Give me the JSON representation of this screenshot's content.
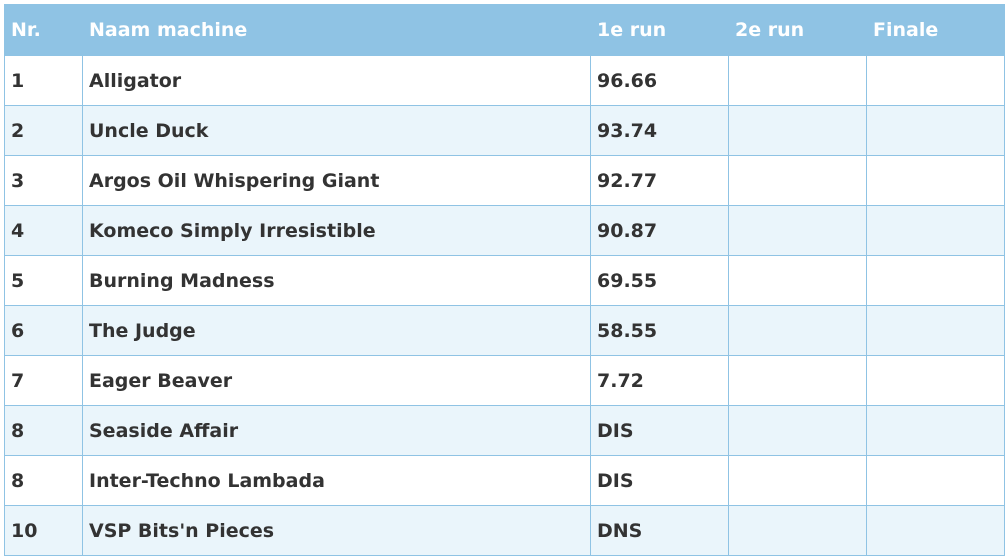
{
  "table": {
    "headers": {
      "nr": "Nr.",
      "name": "Naam machine",
      "run1": "1e run",
      "run2": "2e run",
      "finale": "Finale"
    },
    "rows": [
      {
        "nr": "1",
        "name": "Alligator",
        "run1": "96.66",
        "run2": "",
        "finale": ""
      },
      {
        "nr": "2",
        "name": "Uncle Duck",
        "run1": "93.74",
        "run2": "",
        "finale": ""
      },
      {
        "nr": "3",
        "name": "Argos Oil Whispering Giant",
        "run1": "92.77",
        "run2": "",
        "finale": ""
      },
      {
        "nr": "4",
        "name": "Komeco Simply Irresistible",
        "run1": "90.87",
        "run2": "",
        "finale": ""
      },
      {
        "nr": "5",
        "name": "Burning Madness",
        "run1": "69.55",
        "run2": "",
        "finale": ""
      },
      {
        "nr": "6",
        "name": "The Judge",
        "run1": "58.55",
        "run2": "",
        "finale": ""
      },
      {
        "nr": "7",
        "name": "Eager Beaver",
        "run1": "7.72",
        "run2": "",
        "finale": ""
      },
      {
        "nr": "8",
        "name": "Seaside Affair",
        "run1": "DIS",
        "run2": "",
        "finale": ""
      },
      {
        "nr": "8",
        "name": "Inter-Techno Lambada",
        "run1": "DIS",
        "run2": "",
        "finale": ""
      },
      {
        "nr": "10",
        "name": "VSP Bits'n Pieces",
        "run1": "DNS",
        "run2": "",
        "finale": ""
      }
    ]
  },
  "colors": {
    "header_bg": "#8fc3e4",
    "header_text": "#ffffff",
    "border": "#8fc3e4",
    "row_alt_bg": "#eaf5fb",
    "row_bg": "#ffffff",
    "cell_text": "#333333"
  }
}
